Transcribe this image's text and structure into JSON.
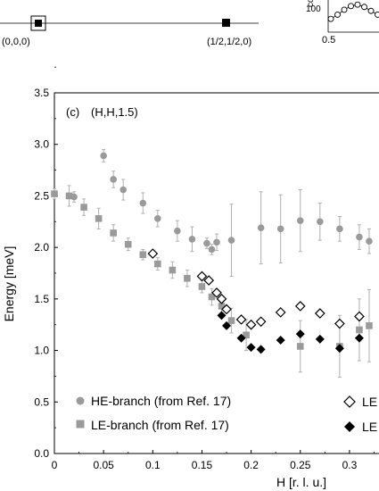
{
  "top_panel": {
    "point_labels": [
      "(0,0,0)",
      "(1/2,1/2,0)"
    ]
  },
  "inset": {
    "x_tick": "0.5",
    "y_tick": "100",
    "y_label_fragment": "co",
    "points": [
      0.4,
      0.55,
      0.72,
      0.85,
      0.9,
      0.82,
      0.68,
      0.55
    ]
  },
  "chart_data": {
    "type": "scatter",
    "panel_label": "(c)",
    "title": "(H,H,1.5)",
    "xlabel": "H [r. l. u.]",
    "ylabel": "Energy [meV]",
    "xlim": [
      0,
      0.33
    ],
    "ylim": [
      0,
      3.5
    ],
    "x_ticks": [
      "0",
      "0.05",
      "0.1",
      "0.15",
      "0.2",
      "0.25",
      "0.3"
    ],
    "y_ticks": [
      "0.0",
      "0.5",
      "1.0",
      "1.5",
      "2.0",
      "2.5",
      "3.0",
      "3.5"
    ],
    "series": [
      {
        "name": "HE-branch (from Ref. 17)",
        "marker": "circle",
        "color": "#9a9a9a",
        "x": [
          0.02,
          0.05,
          0.06,
          0.07,
          0.09,
          0.105,
          0.125,
          0.14,
          0.155,
          0.16,
          0.165,
          0.18,
          0.21,
          0.23,
          0.25,
          0.27,
          0.29,
          0.31,
          0.32
        ],
        "y": [
          2.49,
          2.89,
          2.66,
          2.56,
          2.43,
          2.28,
          2.16,
          2.08,
          2.04,
          1.98,
          2.05,
          2.07,
          2.19,
          2.18,
          2.26,
          2.25,
          2.18,
          2.1,
          2.06
        ],
        "err": [
          0.05,
          0.06,
          0.08,
          0.1,
          0.1,
          0.08,
          0.1,
          0.12,
          0.05,
          0.05,
          0.08,
          0.35,
          0.35,
          0.33,
          0.3,
          0.18,
          0.12,
          0.12,
          0.12
        ]
      },
      {
        "name": "LE-branch (from Ref. 17)",
        "marker": "square",
        "color": "#9a9a9a",
        "x": [
          0.0,
          0.015,
          0.03,
          0.045,
          0.06,
          0.075,
          0.09,
          0.105,
          0.12,
          0.135,
          0.15,
          0.16,
          0.17,
          0.18,
          0.195,
          0.25,
          0.29,
          0.31,
          0.32
        ],
        "y": [
          2.52,
          2.5,
          2.39,
          2.28,
          2.14,
          2.03,
          1.93,
          1.84,
          1.78,
          1.7,
          1.62,
          1.52,
          1.43,
          1.29,
          1.15,
          1.04,
          1.04,
          1.2,
          1.24
        ],
        "err": [
          0.05,
          0.1,
          0.08,
          0.1,
          0.08,
          0.06,
          0.05,
          0.06,
          0.08,
          0.08,
          0.06,
          0.08,
          0.1,
          0.12,
          0.15,
          0.25,
          0.3,
          0.3,
          0.35
        ]
      },
      {
        "name": "",
        "marker": "open-diamond",
        "color": "#000000",
        "x": [
          0.1,
          0.15,
          0.157,
          0.165,
          0.17,
          0.175,
          0.19,
          0.2,
          0.21,
          0.23,
          0.25,
          0.27,
          0.29,
          0.31
        ],
        "y": [
          1.94,
          1.72,
          1.68,
          1.56,
          1.5,
          1.4,
          1.3,
          1.25,
          1.28,
          1.37,
          1.43,
          1.36,
          1.26,
          1.33
        ],
        "err": [
          0,
          0,
          0,
          0,
          0,
          0,
          0,
          0,
          0,
          0,
          0,
          0,
          0,
          0
        ]
      },
      {
        "name": "",
        "marker": "filled-diamond",
        "color": "#000000",
        "x": [
          0.17,
          0.175,
          0.19,
          0.2,
          0.21,
          0.23,
          0.25,
          0.27,
          0.29,
          0.31
        ],
        "y": [
          1.34,
          1.24,
          1.12,
          1.03,
          1.01,
          1.1,
          1.16,
          1.11,
          1.02,
          1.12
        ],
        "err": [
          0,
          0,
          0,
          0,
          0,
          0,
          0,
          0,
          0,
          0
        ]
      }
    ],
    "legend_left": [
      "HE-branch (from Ref. 17)",
      "LE-branch (from Ref. 17)"
    ],
    "legend_right": [
      "LE",
      "LE"
    ]
  }
}
